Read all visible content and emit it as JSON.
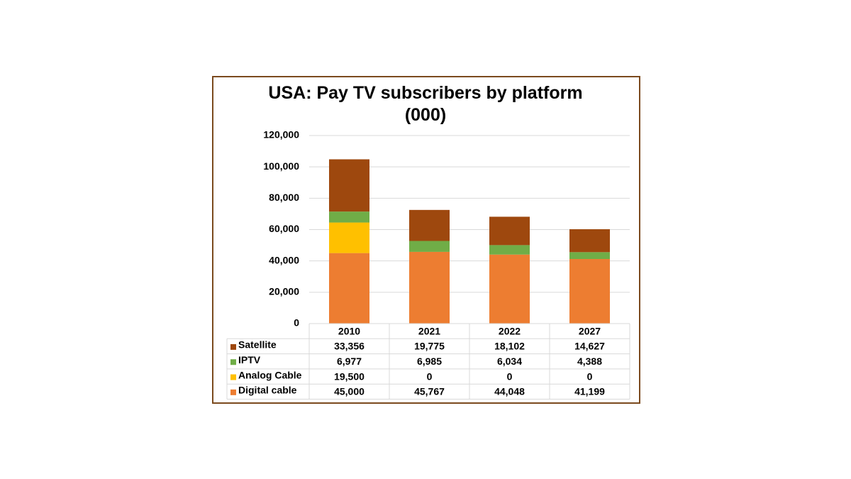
{
  "chart_data": {
    "type": "bar",
    "stacked": true,
    "title": "USA: Pay TV subscribers by platform (000)",
    "categories": [
      "2010",
      "2021",
      "2022",
      "2027"
    ],
    "series": [
      {
        "name": "Satellite",
        "color": "#9e480e",
        "values": [
          33356,
          19775,
          18102,
          14627
        ],
        "value_labels": [
          "33,356",
          "19,775",
          "18,102",
          "14,627"
        ]
      },
      {
        "name": "IPTV",
        "color": "#70ad47",
        "values": [
          6977,
          6985,
          6034,
          4388
        ],
        "value_labels": [
          "6,977",
          "6,985",
          "6,034",
          "4,388"
        ]
      },
      {
        "name": "Analog Cable",
        "color": "#ffc000",
        "values": [
          19500,
          0,
          0,
          0
        ],
        "value_labels": [
          "19,500",
          "0",
          "0",
          "0"
        ]
      },
      {
        "name": "Digital cable",
        "color": "#ed7d31",
        "values": [
          45000,
          45767,
          44048,
          41199
        ],
        "value_labels": [
          "45,000",
          "45,767",
          "44,048",
          "41,199"
        ]
      }
    ],
    "ylim": [
      0,
      120000
    ],
    "yticks": [
      0,
      {
        "value": 20000,
        "label": "20,000"
      },
      {
        "value": 40000,
        "label": "40,000"
      },
      {
        "value": 60000,
        "label": "60,000"
      },
      {
        "value": 80000,
        "label": "80,000"
      },
      {
        "value": 100000,
        "label": "100,000"
      },
      {
        "value": 120000,
        "label": "120,000"
      }
    ],
    "grid": true
  }
}
